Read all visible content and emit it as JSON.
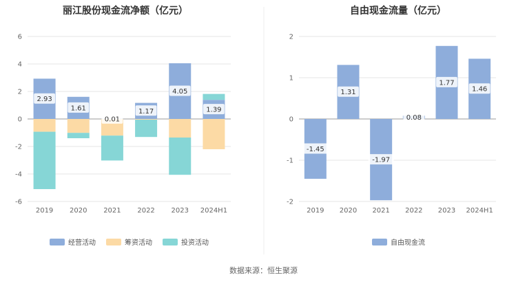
{
  "chart_data": [
    {
      "type": "bar",
      "stacked": true,
      "title": "丽江股份现金流净额（亿元）",
      "categories": [
        "2019",
        "2020",
        "2021",
        "2022",
        "2023",
        "2024H1"
      ],
      "ylim": [
        -6,
        6
      ],
      "yticks": [
        6,
        4,
        2,
        0,
        -2,
        -4,
        -6
      ],
      "series": [
        {
          "name": "经营活动",
          "color": "#8EADDB",
          "values": [
            2.93,
            1.61,
            0.01,
            1.17,
            4.05,
            1.39
          ],
          "labeled": true
        },
        {
          "name": "筹资活动",
          "color": "#FCDAA5",
          "values": [
            -0.93,
            -1.01,
            -1.21,
            -0.05,
            -1.35,
            -2.2
          ],
          "labeled": false
        },
        {
          "name": "投资活动",
          "color": "#86D6D6",
          "values": [
            -4.17,
            -0.39,
            -1.81,
            -1.26,
            -2.71,
            0.43
          ],
          "labeled": false
        }
      ],
      "data_labels": [
        "2.93",
        "1.61",
        "0.01",
        "1.17",
        "4.05",
        "1.39"
      ],
      "legend": [
        "经营活动",
        "筹资活动",
        "投资活动"
      ],
      "legend_position": "bottom"
    },
    {
      "type": "bar",
      "title": "自由现金流量（亿元）",
      "categories": [
        "2019",
        "2020",
        "2021",
        "2022",
        "2023",
        "2024H1"
      ],
      "ylim": [
        -2,
        2
      ],
      "yticks": [
        2,
        1,
        0,
        -1,
        -2
      ],
      "series": [
        {
          "name": "自由现金流",
          "color": "#8EADDB",
          "values": [
            -1.45,
            1.31,
            -1.97,
            0.08,
            1.77,
            1.46
          ]
        }
      ],
      "data_labels": [
        "-1.45",
        "1.31",
        "-1.97",
        "0.08",
        "1.77",
        "1.46"
      ],
      "legend": [
        "自由现金流"
      ],
      "legend_position": "bottom"
    }
  ],
  "footer": {
    "source": "数据来源：恒生聚源"
  }
}
